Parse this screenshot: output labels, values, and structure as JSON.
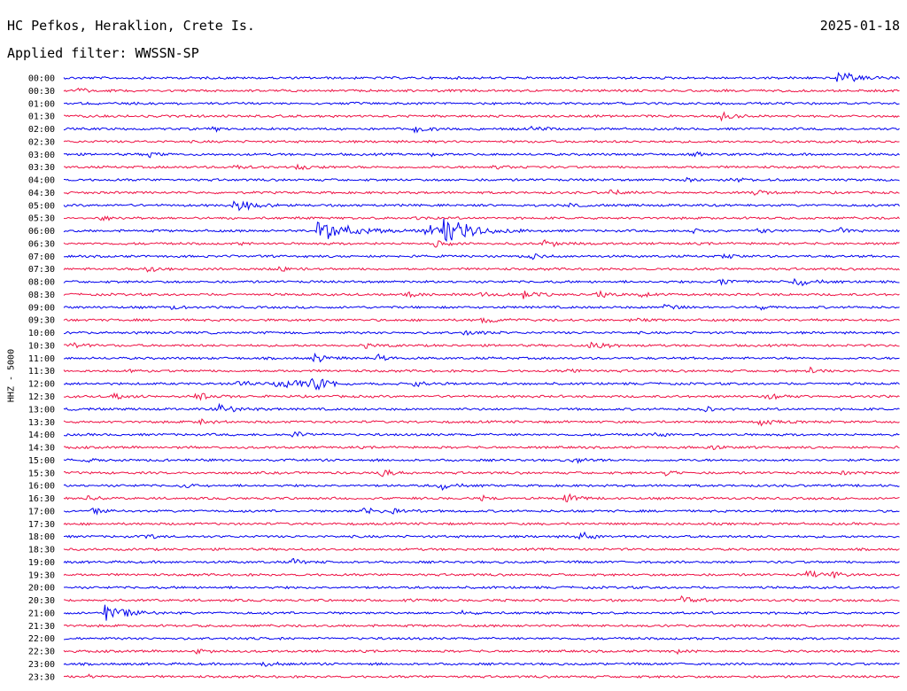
{
  "header": {
    "station": "HC Pefkos, Heraklion, Crete Is.",
    "filter": "Applied filter: WWSSN-SP",
    "date": "2025-01-18"
  },
  "colors": {
    "blue": "#0000ee",
    "red": "#ee1144"
  },
  "chart_data": {
    "type": "line",
    "title": "HC Pefkos, Heraklion, Crete Is.",
    "ylabel": "HHZ - 5000",
    "trace_colors": [
      "blue",
      "red"
    ],
    "rows": [
      {
        "label": "00:00",
        "events": [
          [
            0.925,
            9
          ]
        ]
      },
      {
        "label": "00:30",
        "events": [
          [
            0.015,
            4
          ]
        ]
      },
      {
        "label": "01:00",
        "events": []
      },
      {
        "label": "01:30",
        "events": [
          [
            0.785,
            5
          ]
        ]
      },
      {
        "label": "02:00",
        "events": [
          [
            0.18,
            3
          ],
          [
            0.42,
            4
          ],
          [
            0.56,
            4
          ]
        ]
      },
      {
        "label": "02:30",
        "events": []
      },
      {
        "label": "03:00",
        "events": [
          [
            0.1,
            3
          ],
          [
            0.435,
            3
          ],
          [
            0.755,
            3
          ]
        ]
      },
      {
        "label": "03:30",
        "events": [
          [
            0.2,
            4
          ],
          [
            0.28,
            4
          ],
          [
            0.51,
            4
          ]
        ]
      },
      {
        "label": "04:00",
        "events": [
          [
            0.745,
            3
          ],
          [
            0.8,
            4
          ]
        ]
      },
      {
        "label": "04:30",
        "events": [
          [
            0.655,
            4
          ],
          [
            0.825,
            4
          ]
        ]
      },
      {
        "label": "05:00",
        "events": [
          [
            0.205,
            8
          ],
          [
            0.6,
            3
          ]
        ]
      },
      {
        "label": "05:30",
        "events": [
          [
            0.045,
            5
          ],
          [
            0.42,
            2
          ]
        ]
      },
      {
        "label": "06:00",
        "events": [
          [
            0.305,
            16
          ],
          [
            0.435,
            8
          ],
          [
            0.455,
            15
          ],
          [
            0.75,
            4
          ],
          [
            0.83,
            4
          ],
          [
            0.93,
            4
          ]
        ]
      },
      {
        "label": "06:30",
        "events": [
          [
            0.215,
            2
          ],
          [
            0.44,
            5
          ],
          [
            0.575,
            5
          ]
        ]
      },
      {
        "label": "07:00",
        "events": [
          [
            0.56,
            3
          ],
          [
            0.79,
            3
          ]
        ]
      },
      {
        "label": "07:30",
        "events": [
          [
            0.1,
            5
          ],
          [
            0.255,
            5
          ]
        ]
      },
      {
        "label": "08:00",
        "events": [
          [
            0.785,
            5
          ],
          [
            0.875,
            6
          ]
        ]
      },
      {
        "label": "08:30",
        "events": [
          [
            0.41,
            4
          ],
          [
            0.5,
            4
          ],
          [
            0.55,
            5
          ],
          [
            0.64,
            4
          ],
          [
            0.69,
            4
          ]
        ]
      },
      {
        "label": "09:00",
        "events": [
          [
            0.13,
            3
          ],
          [
            0.72,
            5
          ],
          [
            0.83,
            3
          ]
        ]
      },
      {
        "label": "09:30",
        "events": [
          [
            0.5,
            5
          ],
          [
            0.68,
            3
          ]
        ]
      },
      {
        "label": "10:00",
        "events": [
          [
            0.48,
            4
          ]
        ]
      },
      {
        "label": "10:30",
        "events": [
          [
            0.01,
            5
          ],
          [
            0.36,
            4
          ],
          [
            0.63,
            6
          ]
        ]
      },
      {
        "label": "11:00",
        "events": [
          [
            0.3,
            5
          ],
          [
            0.375,
            4
          ]
        ]
      },
      {
        "label": "11:30",
        "events": [
          [
            0.08,
            3
          ],
          [
            0.6,
            4
          ],
          [
            0.89,
            4
          ]
        ]
      },
      {
        "label": "12:00",
        "events": [
          [
            0.21,
            5
          ],
          [
            0.255,
            11
          ],
          [
            0.295,
            8
          ],
          [
            0.42,
            4
          ]
        ]
      },
      {
        "label": "12:30",
        "events": [
          [
            0.06,
            4
          ],
          [
            0.16,
            5
          ],
          [
            0.84,
            5
          ]
        ]
      },
      {
        "label": "13:00",
        "events": [
          [
            0.185,
            8
          ],
          [
            0.765,
            4
          ]
        ]
      },
      {
        "label": "13:30",
        "events": [
          [
            0.165,
            4
          ],
          [
            0.83,
            5
          ]
        ]
      },
      {
        "label": "14:00",
        "events": [
          [
            0.275,
            5
          ],
          [
            0.71,
            3
          ]
        ]
      },
      {
        "label": "14:30",
        "events": [
          [
            0.775,
            3
          ]
        ]
      },
      {
        "label": "15:00",
        "events": [
          [
            0.03,
            3
          ],
          [
            0.61,
            4
          ]
        ]
      },
      {
        "label": "15:30",
        "events": [
          [
            0.38,
            5
          ],
          [
            0.72,
            3
          ],
          [
            0.93,
            3
          ]
        ]
      },
      {
        "label": "16:00",
        "events": [
          [
            0.14,
            3
          ],
          [
            0.45,
            5
          ]
        ]
      },
      {
        "label": "16:30",
        "events": [
          [
            0.03,
            4
          ],
          [
            0.5,
            3
          ],
          [
            0.6,
            6
          ]
        ]
      },
      {
        "label": "17:00",
        "events": [
          [
            0.035,
            4
          ],
          [
            0.355,
            6
          ],
          [
            0.395,
            5
          ]
        ]
      },
      {
        "label": "17:30",
        "events": []
      },
      {
        "label": "18:00",
        "events": [
          [
            0.1,
            3
          ],
          [
            0.615,
            6
          ]
        ]
      },
      {
        "label": "18:30",
        "events": []
      },
      {
        "label": "19:00",
        "events": [
          [
            0.275,
            4
          ]
        ]
      },
      {
        "label": "19:30",
        "events": [
          [
            0.89,
            5
          ],
          [
            0.92,
            4
          ]
        ]
      },
      {
        "label": "20:00",
        "events": []
      },
      {
        "label": "20:30",
        "events": [
          [
            0.41,
            2
          ],
          [
            0.74,
            5
          ]
        ]
      },
      {
        "label": "21:00",
        "events": [
          [
            0.05,
            11
          ],
          [
            0.475,
            3
          ]
        ]
      },
      {
        "label": "21:30",
        "events": []
      },
      {
        "label": "22:00",
        "events": []
      },
      {
        "label": "22:30",
        "events": [
          [
            0.16,
            3
          ],
          [
            0.73,
            3
          ]
        ]
      },
      {
        "label": "23:00",
        "events": [
          [
            0.24,
            4
          ]
        ]
      },
      {
        "label": "23:30",
        "events": [
          [
            0.03,
            2
          ]
        ]
      }
    ]
  }
}
